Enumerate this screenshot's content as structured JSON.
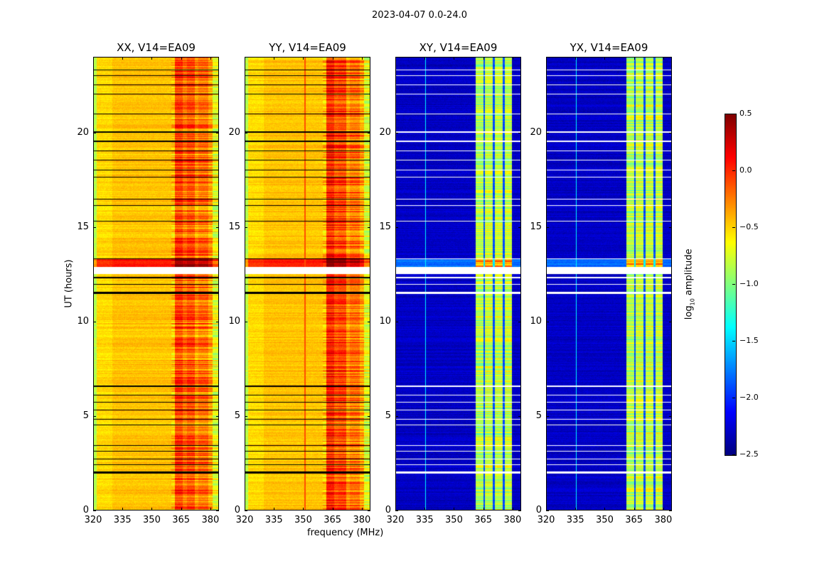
{
  "chart_data": {
    "type": "heatmap",
    "title": "2023-04-07 0.0-24.0",
    "xlabel": "frequency (MHz)",
    "ylabel": "UT (hours)",
    "xlim": [
      320,
      384.4
    ],
    "ylim": [
      0,
      24
    ],
    "xticks": [
      320,
      335,
      350,
      365,
      380
    ],
    "yticks": [
      0,
      5,
      10,
      15,
      20
    ],
    "colorbar": {
      "label": "log10 amplitude",
      "label_main": "log",
      "label_sub": "10",
      "label_rest": " amplitude",
      "colormap": "jet",
      "range": [
        -2.5,
        0.5
      ],
      "ticks": [
        "0.5",
        "0.0",
        "−0.5",
        "−1.0",
        "−1.5",
        "−2.0",
        "−2.5"
      ],
      "tick_values": [
        0.5,
        0.0,
        -0.5,
        -1.0,
        -1.5,
        -2.0,
        -2.5
      ]
    },
    "flagged_hours": [
      [
        1.95,
        2.07
      ],
      [
        2.4,
        2.45
      ],
      [
        2.7,
        2.74
      ],
      [
        3.1,
        3.14
      ],
      [
        3.4,
        3.44
      ],
      [
        4.5,
        4.54
      ],
      [
        4.8,
        4.84
      ],
      [
        5.3,
        5.34
      ],
      [
        5.7,
        5.74
      ],
      [
        6.1,
        6.14
      ],
      [
        6.55,
        6.62
      ],
      [
        11.45,
        11.55
      ],
      [
        11.95,
        12.0
      ],
      [
        12.3,
        12.34
      ],
      [
        13.3,
        13.35
      ],
      [
        15.3,
        15.34
      ],
      [
        16.1,
        16.14
      ],
      [
        16.45,
        16.5
      ],
      [
        17.6,
        17.65
      ],
      [
        18.0,
        18.04
      ],
      [
        18.5,
        18.55
      ],
      [
        19.0,
        19.04
      ],
      [
        19.5,
        19.55
      ],
      [
        20.0,
        20.05
      ],
      [
        20.95,
        21.0
      ],
      [
        22.0,
        22.04
      ],
      [
        22.5,
        22.55
      ],
      [
        23.0,
        23.04
      ],
      [
        23.3,
        23.34
      ]
    ],
    "gap_hours": [
      [
        12.5,
        12.9
      ]
    ],
    "bright_hours": [
      [
        12.9,
        13.3
      ]
    ],
    "panels": [
      {
        "title": "XX, V14=EA09",
        "flag_color": "#000000",
        "profile": [
          [
            320,
            322,
            -0.85
          ],
          [
            322,
            330,
            -0.52
          ],
          [
            330,
            362,
            -0.45
          ],
          [
            362,
            366,
            -0.05
          ],
          [
            366,
            368,
            -0.2
          ],
          [
            368,
            372,
            -0.1
          ],
          [
            372,
            374,
            -0.3
          ],
          [
            374,
            379,
            -0.2
          ],
          [
            379,
            381,
            -0.35
          ],
          [
            381,
            384.5,
            -0.7
          ]
        ],
        "lines": []
      },
      {
        "title": "YY, V14=EA09",
        "flag_color": "#000000",
        "profile": [
          [
            320,
            322,
            -0.85
          ],
          [
            322,
            330,
            -0.52
          ],
          [
            330,
            362,
            -0.45
          ],
          [
            362,
            366,
            0.05
          ],
          [
            366,
            368,
            -0.1
          ],
          [
            368,
            372,
            -0.05
          ],
          [
            372,
            374,
            -0.3
          ],
          [
            374,
            379,
            -0.2
          ],
          [
            379,
            381,
            -0.35
          ],
          [
            381,
            384.5,
            -0.7
          ]
        ],
        "lines": [
          [
            351,
            -0.1
          ]
        ]
      },
      {
        "title": "XY, V14=EA09",
        "flag_color": "#ffffff",
        "profile": [
          [
            320,
            361,
            -2.3
          ],
          [
            361,
            365,
            -0.85
          ],
          [
            365,
            366,
            -1.9
          ],
          [
            366,
            370,
            -0.8
          ],
          [
            370,
            371,
            -1.9
          ],
          [
            371,
            375,
            -0.8
          ],
          [
            375,
            376,
            -1.9
          ],
          [
            376,
            379.5,
            -0.8
          ],
          [
            379.5,
            384.5,
            -2.3
          ]
        ],
        "lines": [
          [
            335.5,
            -1.4
          ]
        ]
      },
      {
        "title": "YX, V14=EA09",
        "flag_color": "#ffffff",
        "profile": [
          [
            320,
            361,
            -2.3
          ],
          [
            361,
            365,
            -0.85
          ],
          [
            365,
            366,
            -1.9
          ],
          [
            366,
            370,
            -0.8
          ],
          [
            370,
            371,
            -1.9
          ],
          [
            371,
            375,
            -0.8
          ],
          [
            375,
            376,
            -1.9
          ],
          [
            376,
            379.5,
            -0.8
          ],
          [
            379.5,
            384.5,
            -2.3
          ]
        ],
        "lines": [
          [
            335.5,
            -1.4
          ]
        ]
      }
    ]
  }
}
